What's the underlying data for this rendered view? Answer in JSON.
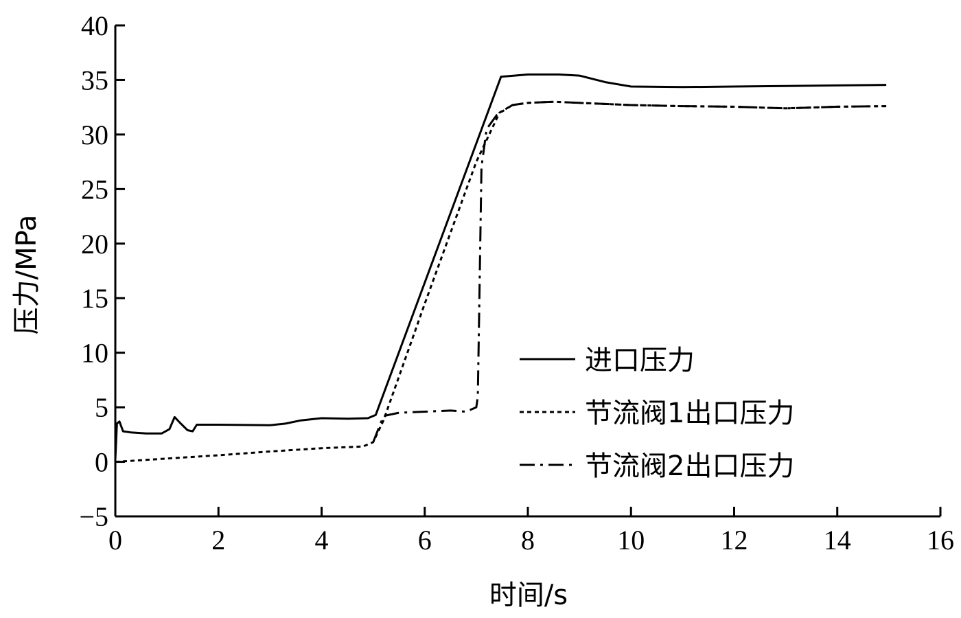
{
  "chart_data": {
    "type": "line",
    "title": "",
    "xlabel": "时间/s",
    "ylabel": "压力/MPa",
    "xlim": [
      0,
      16
    ],
    "ylim": [
      -5,
      40
    ],
    "xticks": [
      0,
      2,
      4,
      6,
      8,
      10,
      12,
      14,
      16
    ],
    "yticks": [
      -5,
      0,
      5,
      10,
      15,
      20,
      25,
      30,
      35,
      40
    ],
    "xtick_labels": [
      "0",
      "2",
      "4",
      "6",
      "8",
      "10",
      "12",
      "14",
      "16"
    ],
    "ytick_labels": [
      "−5",
      "0",
      "5",
      "10",
      "15",
      "20",
      "25",
      "30",
      "35",
      "40"
    ],
    "grid": false,
    "legend_position": "center-right",
    "series": [
      {
        "name": "进口压力",
        "style": "solid",
        "color": "#000000",
        "points": [
          [
            0,
            0.2
          ],
          [
            0.03,
            3.5
          ],
          [
            0.08,
            3.7
          ],
          [
            0.15,
            2.8
          ],
          [
            0.3,
            2.7
          ],
          [
            0.6,
            2.6
          ],
          [
            0.9,
            2.6
          ],
          [
            1.05,
            3.0
          ],
          [
            1.15,
            4.1
          ],
          [
            1.25,
            3.6
          ],
          [
            1.4,
            2.9
          ],
          [
            1.5,
            2.8
          ],
          [
            1.58,
            3.4
          ],
          [
            2.0,
            3.4
          ],
          [
            3.0,
            3.35
          ],
          [
            3.3,
            3.5
          ],
          [
            3.6,
            3.8
          ],
          [
            4.0,
            4.0
          ],
          [
            4.5,
            3.95
          ],
          [
            4.9,
            4.0
          ],
          [
            5.05,
            4.3
          ],
          [
            7.48,
            35.3
          ],
          [
            8.0,
            35.5
          ],
          [
            8.6,
            35.5
          ],
          [
            9.0,
            35.4
          ],
          [
            9.5,
            34.8
          ],
          [
            10.0,
            34.4
          ],
          [
            11.0,
            34.35
          ],
          [
            12.0,
            34.4
          ],
          [
            13.0,
            34.45
          ],
          [
            14.0,
            34.5
          ],
          [
            14.95,
            34.55
          ]
        ]
      },
      {
        "name": "节流阀1出口压力",
        "style": "dotted",
        "color": "#000000",
        "points": [
          [
            0,
            0.0
          ],
          [
            1.0,
            0.3
          ],
          [
            2.0,
            0.6
          ],
          [
            3.0,
            0.95
          ],
          [
            4.0,
            1.25
          ],
          [
            4.8,
            1.4
          ],
          [
            5.0,
            1.8
          ],
          [
            5.2,
            3.8
          ],
          [
            6.0,
            14.5
          ],
          [
            7.0,
            27.5
          ],
          [
            7.45,
            32.0
          ],
          [
            7.7,
            32.7
          ],
          [
            8.0,
            32.9
          ],
          [
            8.5,
            33.0
          ],
          [
            9.0,
            32.9
          ],
          [
            10.0,
            32.7
          ],
          [
            11.0,
            32.6
          ],
          [
            12.0,
            32.55
          ],
          [
            13.0,
            32.4
          ],
          [
            14.0,
            32.55
          ],
          [
            14.95,
            32.6
          ]
        ]
      },
      {
        "name": "节流阀2出口压力",
        "style": "dashdot",
        "color": "#000000",
        "points": [
          [
            5.0,
            1.8
          ],
          [
            5.2,
            4.2
          ],
          [
            5.5,
            4.5
          ],
          [
            6.0,
            4.6
          ],
          [
            6.5,
            4.7
          ],
          [
            6.8,
            4.6
          ],
          [
            7.0,
            5.0
          ],
          [
            7.03,
            6.0
          ],
          [
            7.06,
            15.0
          ],
          [
            7.1,
            27.0
          ],
          [
            7.2,
            30.5
          ],
          [
            7.4,
            31.8
          ],
          [
            7.7,
            32.7
          ],
          [
            8.0,
            32.9
          ],
          [
            8.5,
            33.0
          ],
          [
            9.0,
            32.9
          ],
          [
            10.0,
            32.7
          ],
          [
            11.0,
            32.6
          ],
          [
            12.0,
            32.55
          ],
          [
            13.0,
            32.4
          ],
          [
            14.0,
            32.55
          ],
          [
            14.95,
            32.6
          ]
        ]
      }
    ]
  }
}
